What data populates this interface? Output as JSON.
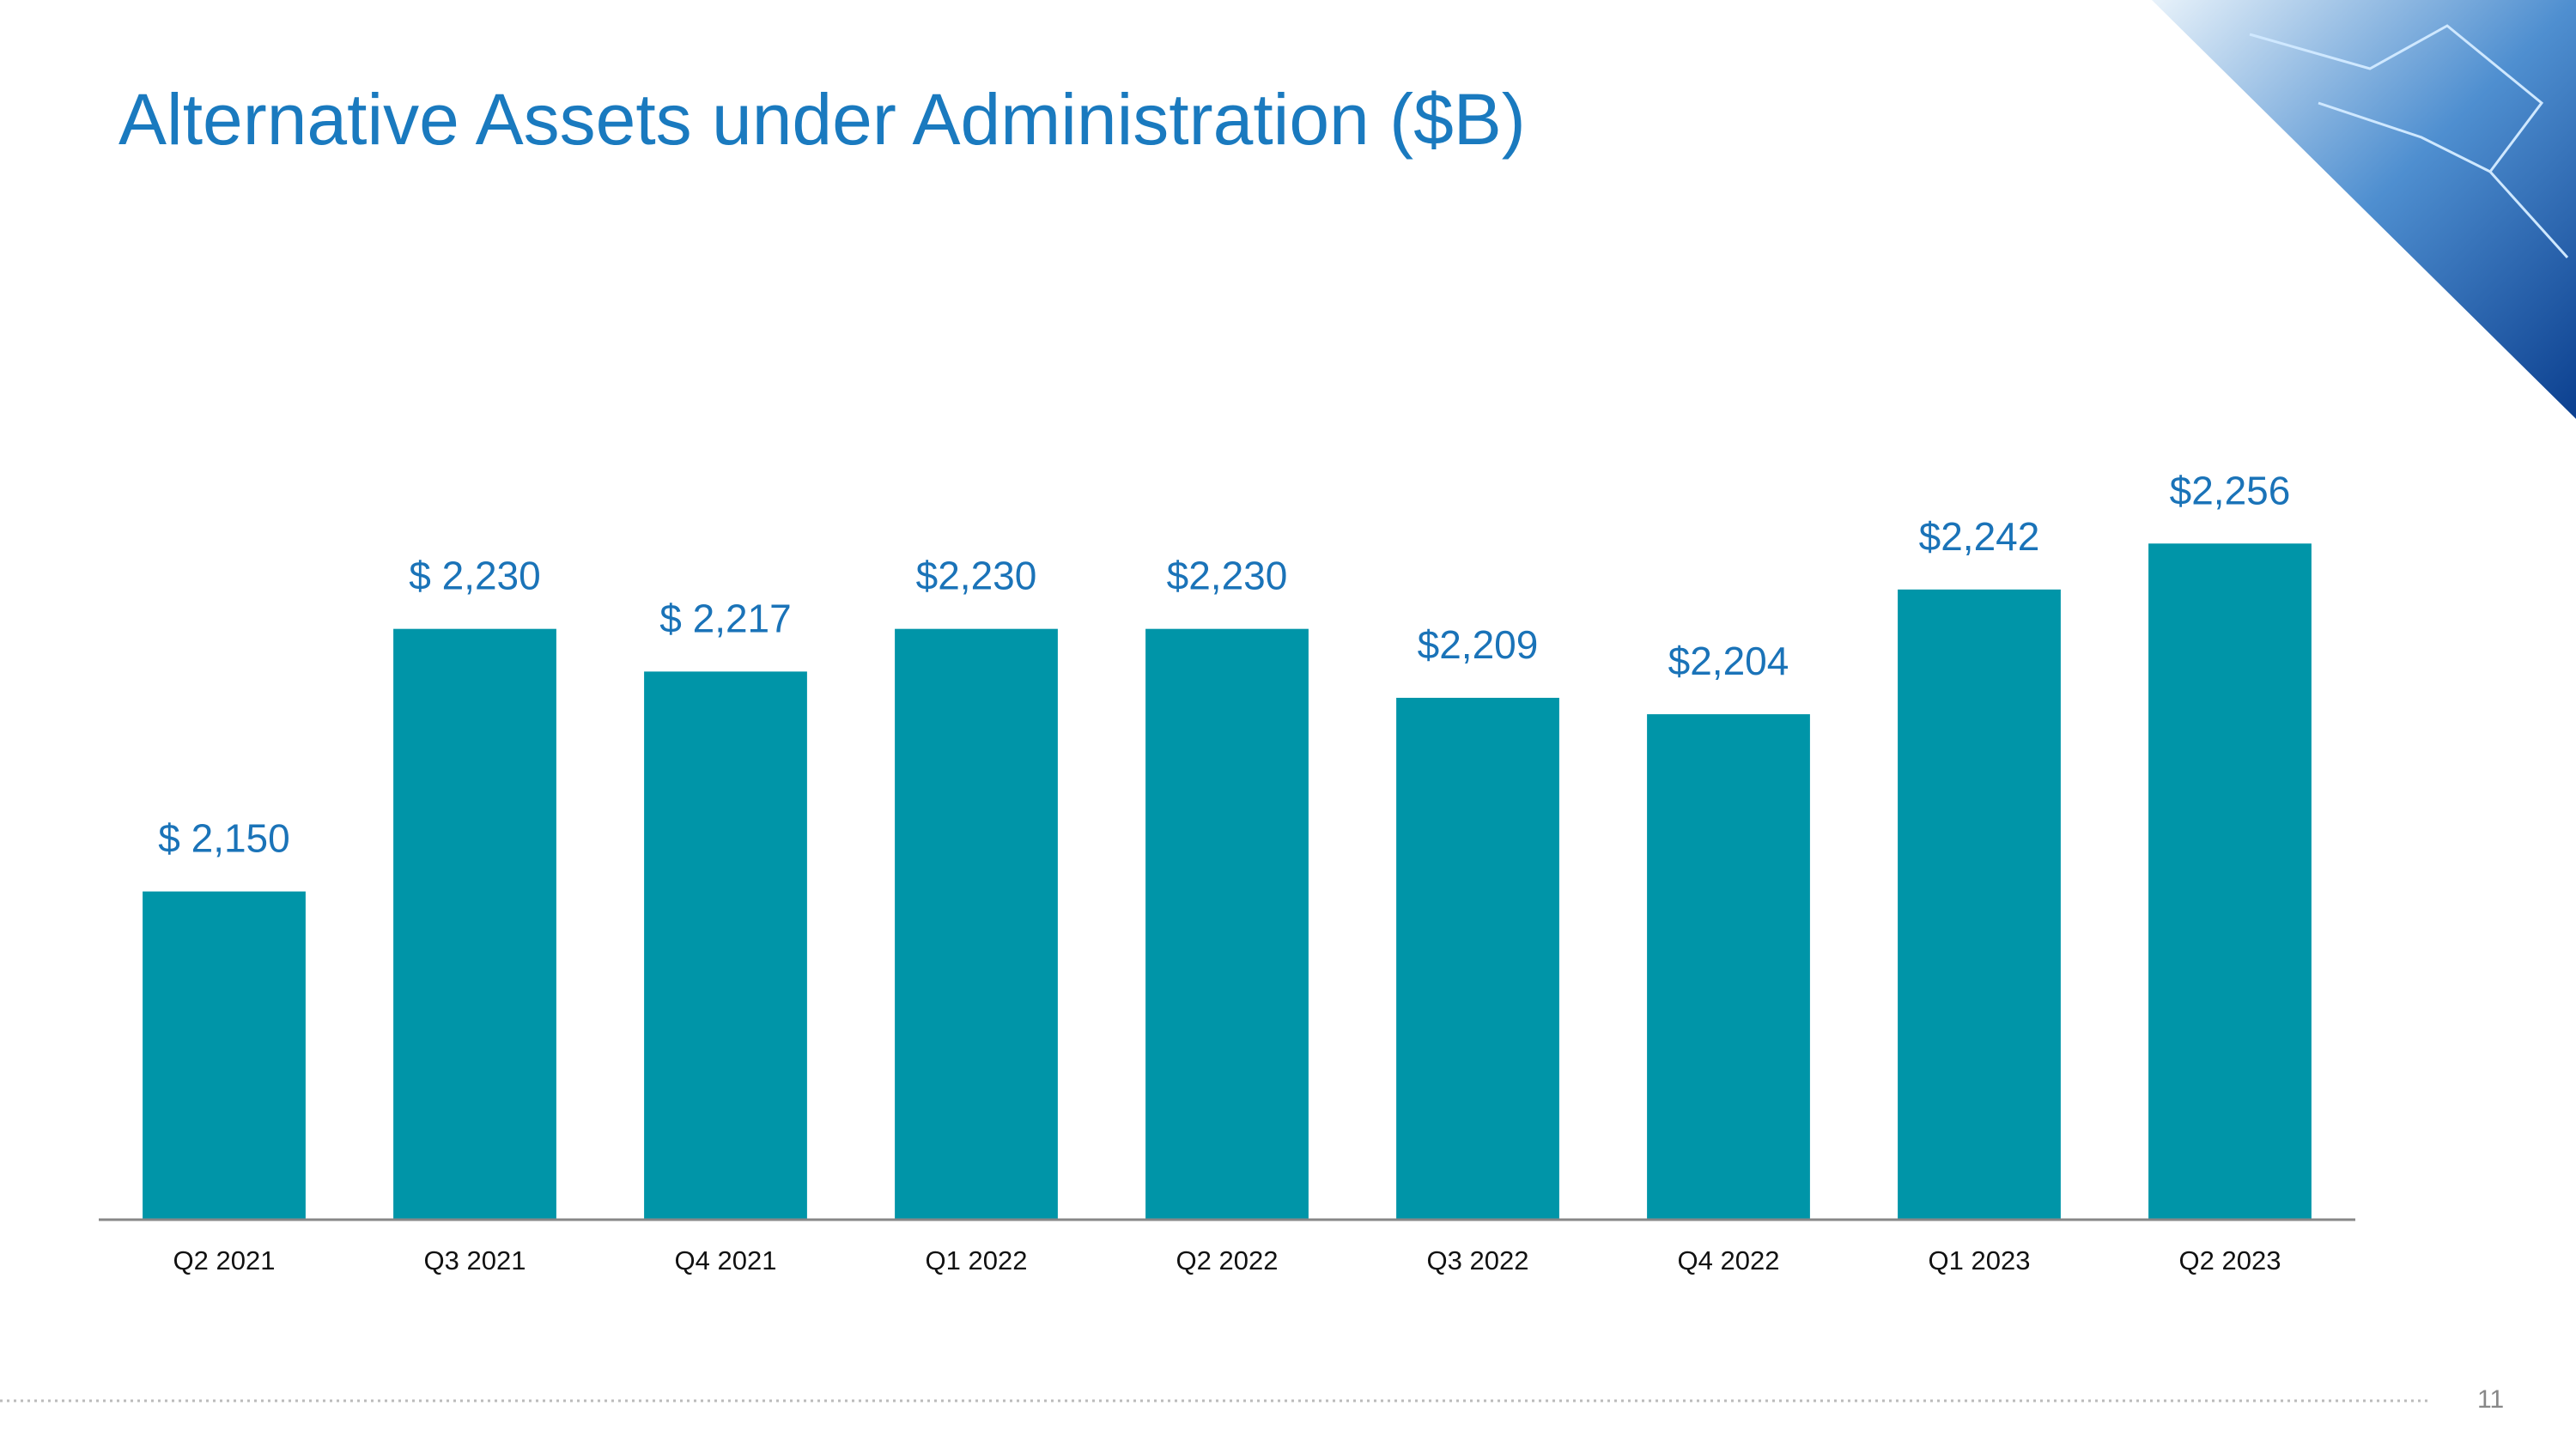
{
  "chart_data": {
    "type": "bar",
    "title": "Alternative Assets under Administration ($B)",
    "categories": [
      "Q2 2021",
      "Q3 2021",
      "Q4 2021",
      "Q1 2022",
      "Q2 2022",
      "Q3 2022",
      "Q4 2022",
      "Q1 2023",
      "Q2 2023"
    ],
    "values": [
      2150,
      2230,
      2217,
      2230,
      2230,
      2209,
      2204,
      2242,
      2256
    ],
    "value_labels": [
      "$ 2,150",
      "$ 2,230",
      "$ 2,217",
      "$2,230",
      "$2,230",
      "$2,209",
      "$2,204",
      "$2,242",
      "$2,256"
    ],
    "color": "#0095a8",
    "ylim": [
      2050,
      2300
    ]
  },
  "page_number": "11"
}
